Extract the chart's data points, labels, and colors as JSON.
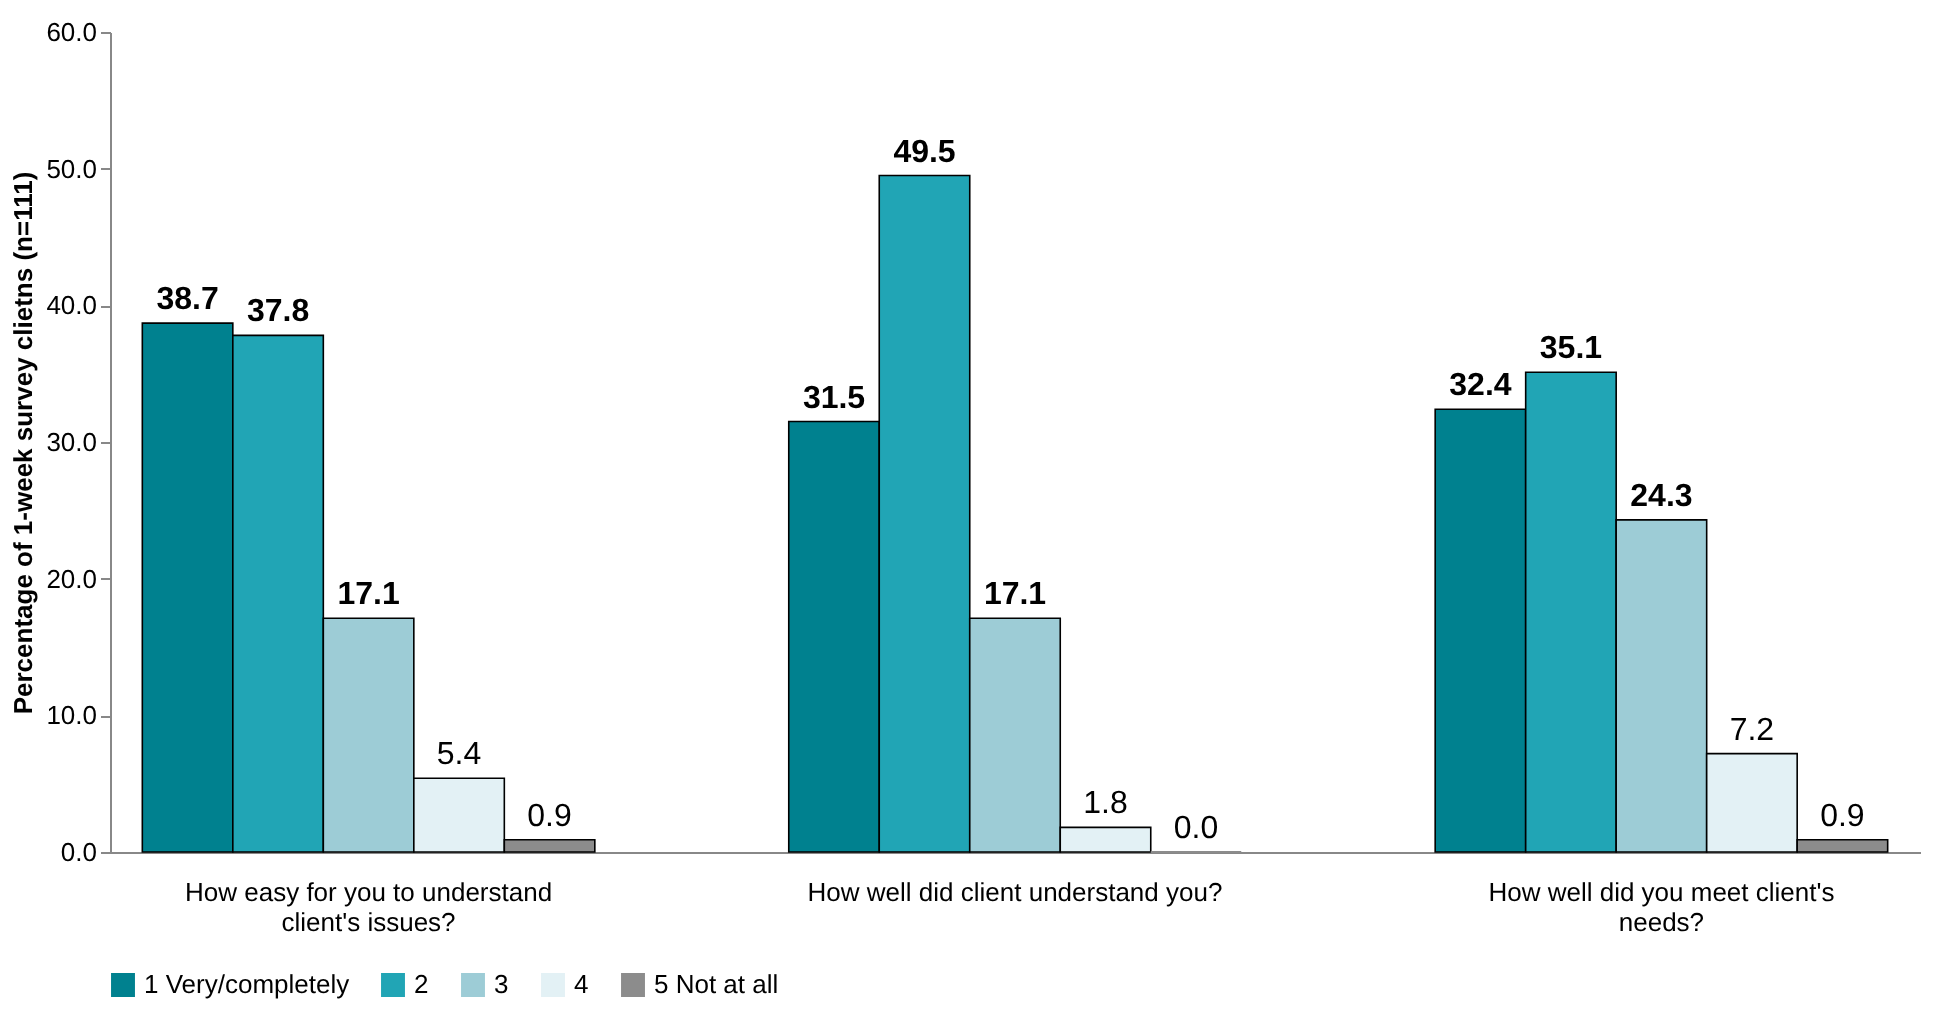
{
  "chart_data": {
    "type": "bar",
    "ylabel": "Percentage of 1-week survey clietns (n=111)",
    "categories": [
      "How easy for you to understand client's issues?",
      "How well did client understand you?",
      "How well did you meet client's needs?"
    ],
    "series": [
      {
        "name": "1 Very/completely",
        "color": "#00818f",
        "values": [
          38.7,
          31.5,
          32.4
        ],
        "value_labels": [
          "38.7",
          "31.5",
          "32.4"
        ]
      },
      {
        "name": "2",
        "color": "#21a5b5",
        "values": [
          37.8,
          49.5,
          35.1
        ],
        "value_labels": [
          "37.8",
          "49.5",
          "35.1"
        ]
      },
      {
        "name": "3",
        "color": "#9dccd6",
        "values": [
          17.1,
          17.1,
          24.3
        ],
        "value_labels": [
          "17.1",
          "17.1",
          "24.3"
        ]
      },
      {
        "name": "4",
        "color": "#e3f1f5",
        "values": [
          5.4,
          1.8,
          7.2
        ],
        "value_labels": [
          "5.4",
          "1.8",
          "7.2"
        ]
      },
      {
        "name": "5 Not at all",
        "color": "#8c8c8c",
        "values": [
          0.9,
          0.0,
          0.9
        ],
        "value_labels": [
          "0.9",
          "0.0",
          "0.9"
        ]
      }
    ],
    "ylim": [
      0,
      60
    ],
    "yticks": [
      {
        "value": 0,
        "label": "0.0"
      },
      {
        "value": 10,
        "label": "10.0"
      },
      {
        "value": 20,
        "label": "20.0"
      },
      {
        "value": 30,
        "label": "30.0"
      },
      {
        "value": 40,
        "label": "40.0"
      },
      {
        "value": 50,
        "label": "50.0"
      },
      {
        "value": 60,
        "label": "60.0"
      }
    ],
    "data_labels": true,
    "grid": false,
    "legend": "bottom"
  }
}
